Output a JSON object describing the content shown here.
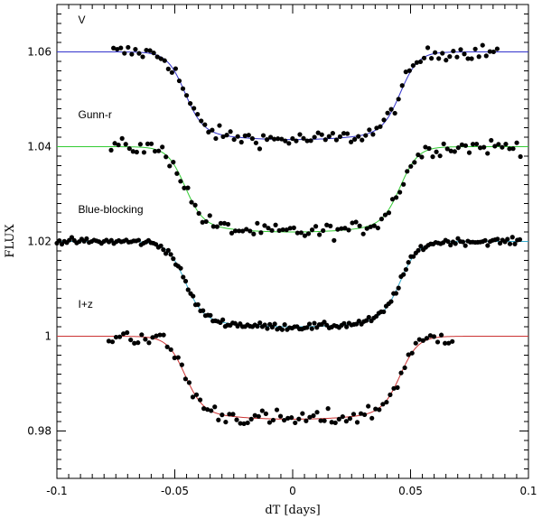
{
  "chart_data": {
    "type": "scatter",
    "xlabel": "dT [days]",
    "ylabel": "FLUX",
    "xlim": [
      -0.1,
      0.1
    ],
    "ylim": [
      0.97,
      1.07
    ],
    "xticks": [
      {
        "value": -0.1,
        "label": "-0.1"
      },
      {
        "value": -0.05,
        "label": "-0.05"
      },
      {
        "value": 0,
        "label": "0"
      },
      {
        "value": 0.05,
        "label": "0.05"
      },
      {
        "value": 0.1,
        "label": "0.1"
      }
    ],
    "yticks": [
      {
        "value": 0.98,
        "label": "0.98"
      },
      {
        "value": 1.0,
        "label": "1"
      },
      {
        "value": 1.02,
        "label": "1.02"
      },
      {
        "value": 1.04,
        "label": "1.04"
      },
      {
        "value": 1.06,
        "label": "1.06"
      }
    ],
    "grid": false,
    "series": [
      {
        "name": "V",
        "baseline": 1.06,
        "depth": 0.0185,
        "color": "#3333cc",
        "x_range": [
          -0.076,
          0.088
        ],
        "label_x": -0.091,
        "label_y": 1.066
      },
      {
        "name": "Gunn-r",
        "baseline": 1.04,
        "depth": 0.018,
        "color": "#33cc33",
        "x_range": [
          -0.077,
          0.097
        ],
        "label_x": -0.091,
        "label_y": 1.046
      },
      {
        "name": "Blue-blocking",
        "baseline": 1.02,
        "depth": 0.018,
        "color": "#33aacc",
        "x_range": [
          -0.1,
          0.097
        ],
        "label_x": -0.091,
        "label_y": 1.026
      },
      {
        "name": "I+z",
        "baseline": 1.0,
        "depth": 0.0175,
        "color": "#cc3333",
        "x_range": [
          -0.078,
          0.069
        ],
        "label_x": -0.091,
        "label_y": 1.006
      }
    ]
  }
}
